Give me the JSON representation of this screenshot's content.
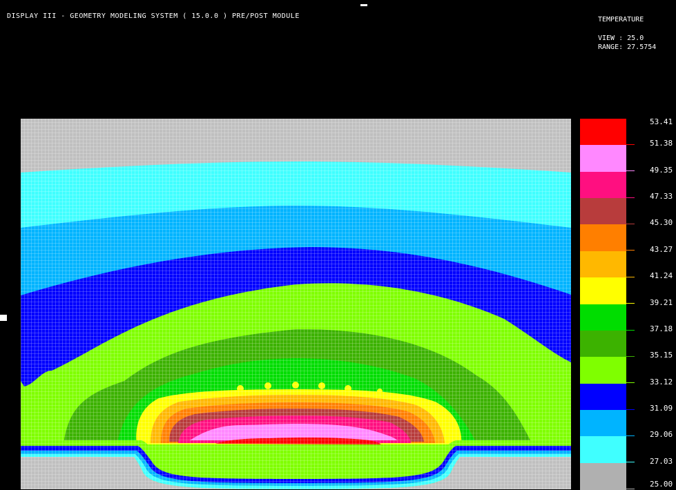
{
  "header": {
    "title": "DISPLAY III - GEOMETRY MODELING SYSTEM ( 15.0.0 )  PRE/POST MODULE"
  },
  "info": {
    "title": "TEMPERATURE",
    "view": "VIEW : 25.0",
    "range": "RANGE: 27.5754"
  },
  "legend": {
    "levels": [
      {
        "label": "53.41",
        "color": "#ff0000"
      },
      {
        "label": "51.38",
        "color": "#ff88ff"
      },
      {
        "label": "49.35",
        "color": "#ff0f80"
      },
      {
        "label": "47.33",
        "color": "#b83c3c"
      },
      {
        "label": "45.30",
        "color": "#ff7f00"
      },
      {
        "label": "43.27",
        "color": "#ffb800"
      },
      {
        "label": "41.24",
        "color": "#ffff00"
      },
      {
        "label": "39.21",
        "color": "#00dd00"
      },
      {
        "label": "37.18",
        "color": "#3cb200"
      },
      {
        "label": "35.15",
        "color": "#7fff00"
      },
      {
        "label": "33.12",
        "color": "#0000ff"
      },
      {
        "label": "31.09",
        "color": "#00b4ff"
      },
      {
        "label": "29.06",
        "color": "#40ffff"
      },
      {
        "label": "27.03",
        "color": "#b0b0b0"
      },
      {
        "label": "25.00",
        "color": ""
      }
    ]
  },
  "colors": {
    "gray": "#c0c0c0",
    "cyan": "#40ffff",
    "sky": "#00b4ff",
    "blue": "#0000ff",
    "lightgreen": "#7fff00",
    "darkgreen": "#3cb200",
    "green": "#00dd00",
    "yellow": "#ffff00",
    "amber": "#ffb800",
    "orange": "#ff7f00",
    "brown": "#b83c3c",
    "magenta": "#ff0f80",
    "pink": "#ff88ff",
    "red": "#ff0000"
  }
}
